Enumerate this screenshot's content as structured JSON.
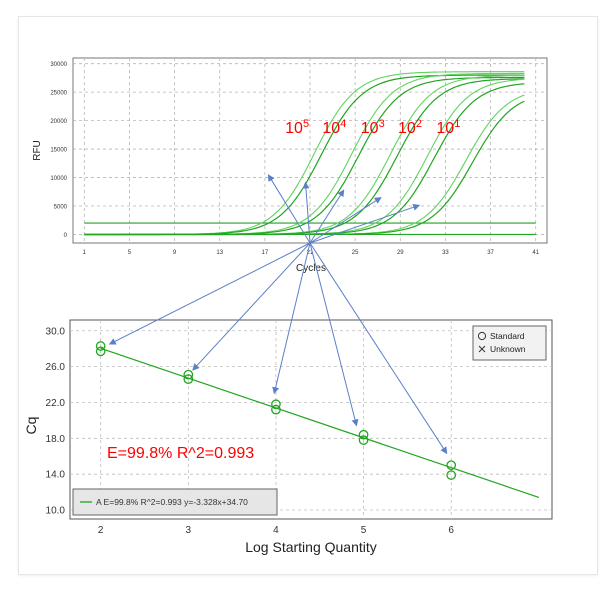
{
  "chart_data": [
    {
      "type": "line",
      "xlabel": "Cycles",
      "ylabel": "RFU",
      "xlim": [
        0,
        42
      ],
      "ylim": [
        -1500,
        31000
      ],
      "x_ticks": [
        "1",
        "5",
        "9",
        "13",
        "17",
        "21",
        "25",
        "29",
        "33",
        "37",
        "41"
      ],
      "y_ticks": [
        "0",
        "5000",
        "10000",
        "15000",
        "20000",
        "25000",
        "30000"
      ],
      "grid": "dashed",
      "baseline": 0,
      "threshold": 2000,
      "dilutions": [
        {
          "label_base": "10",
          "label_exp": "5",
          "cq": 17.5,
          "plateau": [
            28600,
            28000
          ]
        },
        {
          "label_base": "10",
          "label_exp": "4",
          "cq": 20.8,
          "plateau": [
            28300,
            27600
          ]
        },
        {
          "label_base": "10",
          "label_exp": "3",
          "cq": 24.2,
          "plateau": [
            28000,
            27400
          ]
        },
        {
          "label_base": "10",
          "label_exp": "2",
          "cq": 27.5,
          "plateau": [
            27500,
            26800
          ]
        },
        {
          "label_base": "10",
          "label_exp": "1",
          "cq": 30.9,
          "plateau": [
            25900,
            25300
          ]
        }
      ],
      "colors": {
        "curve": "#1fa61f",
        "curve_light": "#5fd45f",
        "label": "#ff0000",
        "arrow": "#5b80c8"
      }
    },
    {
      "type": "scatter",
      "xlabel": "Log Starting Quantity",
      "ylabel": "Cq",
      "xlim": [
        1.65,
        7.15
      ],
      "ylim": [
        9.0,
        31.2
      ],
      "x_ticks": [
        "2",
        "3",
        "4",
        "5",
        "6"
      ],
      "y_ticks": [
        "10.0",
        "14.0",
        "18.0",
        "22.0",
        "26.0",
        "30.0"
      ],
      "grid": "dashed",
      "points": [
        {
          "x": 2,
          "y": 28.3
        },
        {
          "x": 2,
          "y": 27.7
        },
        {
          "x": 3,
          "y": 25.1
        },
        {
          "x": 3,
          "y": 24.6
        },
        {
          "x": 4,
          "y": 21.8
        },
        {
          "x": 4,
          "y": 21.2
        },
        {
          "x": 5,
          "y": 18.4
        },
        {
          "x": 5,
          "y": 17.8
        },
        {
          "x": 6,
          "y": 15.0
        },
        {
          "x": 6,
          "y": 13.9
        }
      ],
      "fit": {
        "slope": -3.328,
        "intercept": 34.7,
        "x_range": [
          2.0,
          7.0
        ]
      },
      "annotation": "E=99.8%  R^2=0.993",
      "legend": {
        "items": [
          {
            "symbol": "O",
            "label": "Standard"
          },
          {
            "symbol": "X",
            "label": "Unknown"
          }
        ],
        "position": "top-right"
      },
      "fit_legend": "A E=99.8% R^2=0.993 y=-3.328x+34.70",
      "colors": {
        "point": "#1fa61f",
        "fit": "#1fa61f",
        "annotation": "#ff0000"
      }
    }
  ],
  "arrow_hub": {
    "x": 21.0,
    "y": -1500
  }
}
